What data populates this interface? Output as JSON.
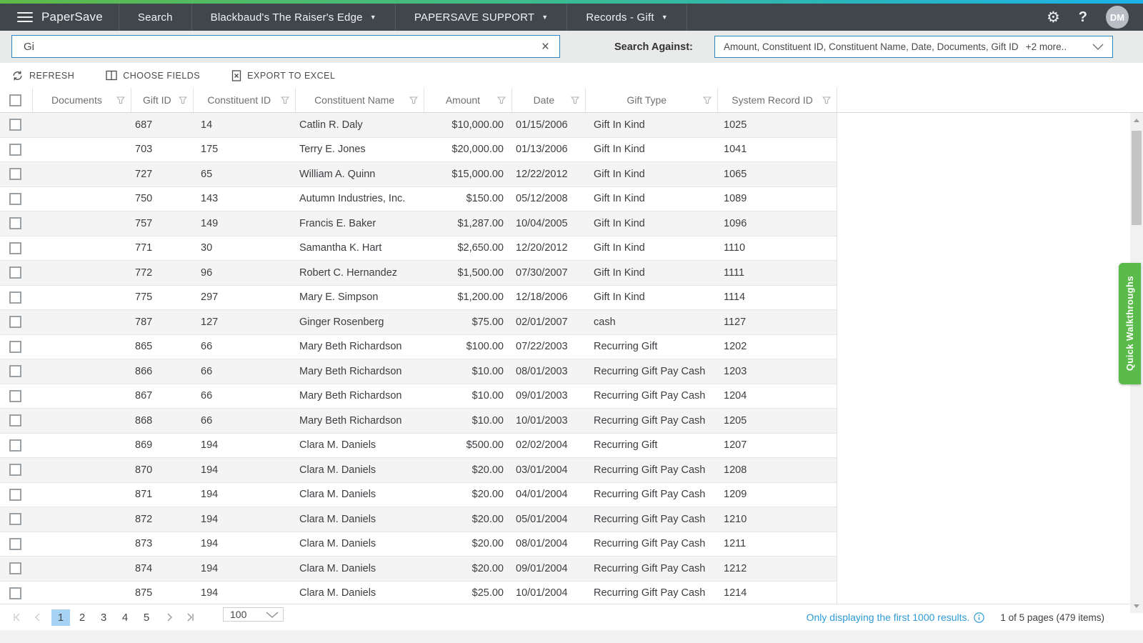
{
  "topbar": {
    "brand": "PaperSave",
    "items": [
      {
        "id": "search",
        "label": "Search",
        "dropdown": false
      },
      {
        "id": "blackbaud-raisers-edge",
        "label": "Blackbaud's The Raiser's Edge",
        "dropdown": true
      },
      {
        "id": "papersave-support",
        "label": "PAPERSAVE SUPPORT",
        "dropdown": true
      },
      {
        "id": "records-gift",
        "label": "Records - Gift",
        "dropdown": true
      }
    ],
    "avatar_initials": "DM"
  },
  "search": {
    "value": "Gi",
    "against_label": "Search Against:",
    "against_value": "Amount, Constituent ID, Constituent Name, Date, Documents, Gift ID",
    "against_more": "+2 more.."
  },
  "toolbar": {
    "refresh_label": "REFRESH",
    "choose_fields_label": "CHOOSE FIELDS",
    "export_label": "EXPORT TO EXCEL"
  },
  "table": {
    "columns": [
      "Documents",
      "Gift ID",
      "Constituent ID",
      "Constituent Name",
      "Amount",
      "Date",
      "Gift Type",
      "System Record ID"
    ],
    "rows": [
      [
        "",
        "687",
        "14",
        "Catlin R. Daly",
        "$10,000.00",
        "01/15/2006",
        "Gift In Kind",
        "1025"
      ],
      [
        "",
        "703",
        "175",
        "Terry E. Jones",
        "$20,000.00",
        "01/13/2006",
        "Gift In Kind",
        "1041"
      ],
      [
        "",
        "727",
        "65",
        "William A. Quinn",
        "$15,000.00",
        "12/22/2012",
        "Gift In Kind",
        "1065"
      ],
      [
        "",
        "750",
        "143",
        "Autumn Industries, Inc.",
        "$150.00",
        "05/12/2008",
        "Gift In Kind",
        "1089"
      ],
      [
        "",
        "757",
        "149",
        "Francis E. Baker",
        "$1,287.00",
        "10/04/2005",
        "Gift In Kind",
        "1096"
      ],
      [
        "",
        "771",
        "30",
        "Samantha K. Hart",
        "$2,650.00",
        "12/20/2012",
        "Gift In Kind",
        "1110"
      ],
      [
        "",
        "772",
        "96",
        "Robert C. Hernandez",
        "$1,500.00",
        "07/30/2007",
        "Gift In Kind",
        "1111"
      ],
      [
        "",
        "775",
        "297",
        "Mary E. Simpson",
        "$1,200.00",
        "12/18/2006",
        "Gift In Kind",
        "1114"
      ],
      [
        "",
        "787",
        "127",
        "Ginger Rosenberg",
        "$75.00",
        "02/01/2007",
        "cash",
        "1127"
      ],
      [
        "",
        "865",
        "66",
        "Mary Beth Richardson",
        "$100.00",
        "07/22/2003",
        "Recurring Gift",
        "1202"
      ],
      [
        "",
        "866",
        "66",
        "Mary Beth Richardson",
        "$10.00",
        "08/01/2003",
        "Recurring Gift Pay Cash",
        "1203"
      ],
      [
        "",
        "867",
        "66",
        "Mary Beth Richardson",
        "$10.00",
        "09/01/2003",
        "Recurring Gift Pay Cash",
        "1204"
      ],
      [
        "",
        "868",
        "66",
        "Mary Beth Richardson",
        "$10.00",
        "10/01/2003",
        "Recurring Gift Pay Cash",
        "1205"
      ],
      [
        "",
        "869",
        "194",
        "Clara M. Daniels",
        "$500.00",
        "02/02/2004",
        "Recurring Gift",
        "1207"
      ],
      [
        "",
        "870",
        "194",
        "Clara M. Daniels",
        "$20.00",
        "03/01/2004",
        "Recurring Gift Pay Cash",
        "1208"
      ],
      [
        "",
        "871",
        "194",
        "Clara M. Daniels",
        "$20.00",
        "04/01/2004",
        "Recurring Gift Pay Cash",
        "1209"
      ],
      [
        "",
        "872",
        "194",
        "Clara M. Daniels",
        "$20.00",
        "05/01/2004",
        "Recurring Gift Pay Cash",
        "1210"
      ],
      [
        "",
        "873",
        "194",
        "Clara M. Daniels",
        "$20.00",
        "08/01/2004",
        "Recurring Gift Pay Cash",
        "1211"
      ],
      [
        "",
        "874",
        "194",
        "Clara M. Daniels",
        "$20.00",
        "09/01/2004",
        "Recurring Gift Pay Cash",
        "1212"
      ],
      [
        "",
        "875",
        "194",
        "Clara M. Daniels",
        "$25.00",
        "10/01/2004",
        "Recurring Gift Pay Cash",
        "1214"
      ]
    ]
  },
  "pagination": {
    "pages": [
      "1",
      "2",
      "3",
      "4",
      "5"
    ],
    "current_page": "1",
    "page_size": "100",
    "notice": "Only displaying the first 1000 results.",
    "summary": "1 of 5 pages (479 items)"
  },
  "side_tab_label": "Quick Walkthroughs",
  "colors": {
    "accent_blue": "#2e86c1",
    "link_blue": "#2e9bd6",
    "topbar_bg": "#3f464c",
    "gradient_left": "#5fba47",
    "gradient_right": "#1ab2e8",
    "tab_green": "#5bbb4a",
    "stripe": "#f4f4f4",
    "current_page_bg": "#a6d3f3"
  }
}
